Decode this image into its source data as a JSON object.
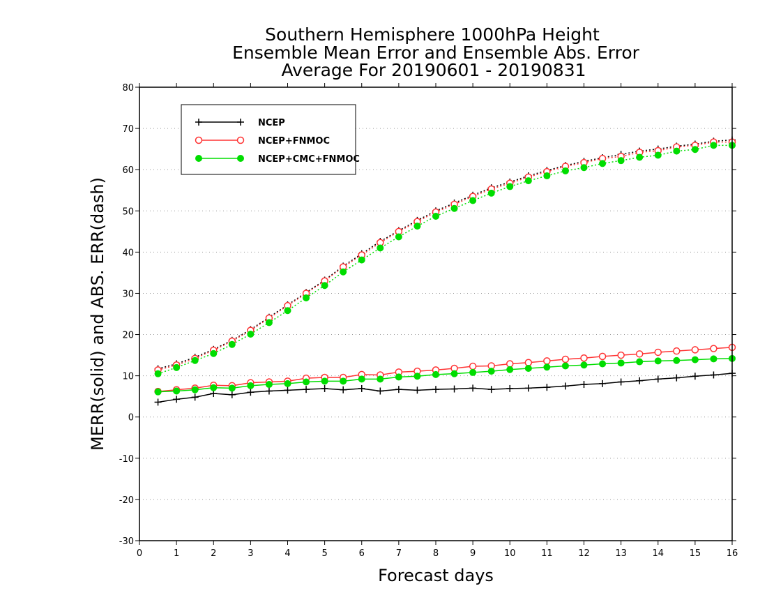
{
  "chart_data": {
    "type": "line",
    "title_lines": [
      "Southern Hemisphere 1000hPa Height",
      "Ensemble Mean Error and Ensemble Abs. Error",
      "Average For 20190601 - 20190831"
    ],
    "xlabel": "Forecast days",
    "ylabel": "MERR(solid) and ABS. ERR(dash)",
    "xlim": [
      0,
      16
    ],
    "ylim": [
      -30,
      80
    ],
    "x_ticks": [
      "0",
      "1",
      "2",
      "3",
      "4",
      "5",
      "6",
      "7",
      "8",
      "9",
      "10",
      "11",
      "12",
      "13",
      "14",
      "15",
      "16"
    ],
    "y_ticks": [
      "-30",
      "-20",
      "-10",
      "0",
      "10",
      "20",
      "30",
      "40",
      "50",
      "60",
      "70",
      "80"
    ],
    "grid": "horizontal dotted",
    "legend_position": "top-left",
    "x": [
      0.5,
      1,
      1.5,
      2,
      2.5,
      3,
      3.5,
      4,
      4.5,
      5,
      5.5,
      6,
      6.5,
      7,
      7.5,
      8,
      8.5,
      9,
      9.5,
      10,
      10.5,
      11,
      11.5,
      12,
      12.5,
      13,
      13.5,
      14,
      14.5,
      15,
      15.5,
      16
    ],
    "series": [
      {
        "name": "NCEP",
        "color": "#000000",
        "marker": "plus",
        "style": "solid",
        "values": [
          3.6,
          4.3,
          4.8,
          5.7,
          5.4,
          6.0,
          6.3,
          6.5,
          6.7,
          6.9,
          6.6,
          6.9,
          6.3,
          6.7,
          6.5,
          6.7,
          6.8,
          7.0,
          6.7,
          6.9,
          7.0,
          7.2,
          7.5,
          7.9,
          8.1,
          8.5,
          8.8,
          9.2,
          9.5,
          9.9,
          10.2,
          10.6
        ]
      },
      {
        "name": "NCEP",
        "color": "#000000",
        "marker": "plus",
        "style": "dash",
        "values": [
          11.7,
          12.9,
          14.5,
          16.4,
          18.6,
          21.2,
          24.2,
          27.2,
          30.2,
          33.2,
          36.6,
          39.6,
          42.6,
          45.2,
          47.7,
          50.0,
          51.9,
          53.8,
          55.6,
          57.0,
          58.5,
          59.8,
          61.0,
          62.0,
          62.9,
          63.7,
          64.5,
          65.0,
          65.7,
          66.2,
          66.9,
          67.2
        ]
      },
      {
        "name": "NCEP+FNMOC",
        "color": "#ff3333",
        "marker": "open-circle",
        "style": "solid",
        "values": [
          6.2,
          6.6,
          7.0,
          7.7,
          7.6,
          8.3,
          8.5,
          8.7,
          9.4,
          9.6,
          9.6,
          10.3,
          10.2,
          10.9,
          11.1,
          11.4,
          11.8,
          12.3,
          12.4,
          12.9,
          13.2,
          13.6,
          14.0,
          14.3,
          14.7,
          15.0,
          15.3,
          15.7,
          16.0,
          16.3,
          16.6,
          16.9
        ]
      },
      {
        "name": "NCEP+FNMOC",
        "color": "#ff3333",
        "marker": "open-circle",
        "style": "dash",
        "values": [
          11.4,
          12.6,
          14.2,
          16.2,
          18.4,
          21.0,
          24.0,
          27.0,
          30.0,
          33.0,
          36.4,
          39.3,
          42.3,
          45.0,
          47.4,
          49.7,
          51.6,
          53.5,
          55.3,
          56.7,
          58.2,
          59.5,
          60.8,
          61.7,
          62.7,
          63.2,
          64.2,
          64.6,
          65.5,
          65.9,
          66.7,
          66.7
        ]
      },
      {
        "name": "NCEP+CMC+FNMOC",
        "color": "#00dd00",
        "marker": "filled-circle",
        "style": "solid",
        "values": [
          6.1,
          6.3,
          6.6,
          7.1,
          7.0,
          7.6,
          7.9,
          8.1,
          8.5,
          8.7,
          8.7,
          9.2,
          9.2,
          9.7,
          9.9,
          10.3,
          10.5,
          10.8,
          11.1,
          11.5,
          11.8,
          12.1,
          12.4,
          12.6,
          12.9,
          13.1,
          13.4,
          13.6,
          13.7,
          13.9,
          14.1,
          14.2
        ]
      },
      {
        "name": "NCEP+CMC+FNMOC",
        "color": "#00dd00",
        "marker": "filled-circle",
        "style": "dash",
        "values": [
          10.5,
          12.0,
          13.7,
          15.4,
          17.6,
          20.1,
          22.9,
          25.8,
          28.9,
          31.9,
          35.2,
          38.1,
          41.0,
          43.7,
          46.3,
          48.7,
          50.6,
          52.5,
          54.3,
          55.9,
          57.3,
          58.5,
          59.7,
          60.5,
          61.5,
          62.2,
          63.0,
          63.5,
          64.5,
          64.9,
          65.9,
          65.9
        ]
      }
    ],
    "legend": [
      {
        "label": "NCEP",
        "color": "#000000",
        "marker": "plus"
      },
      {
        "label": "NCEP+FNMOC",
        "color": "#ff3333",
        "marker": "open-circle"
      },
      {
        "label": "NCEP+CMC+FNMOC",
        "color": "#00dd00",
        "marker": "filled-circle"
      }
    ]
  }
}
